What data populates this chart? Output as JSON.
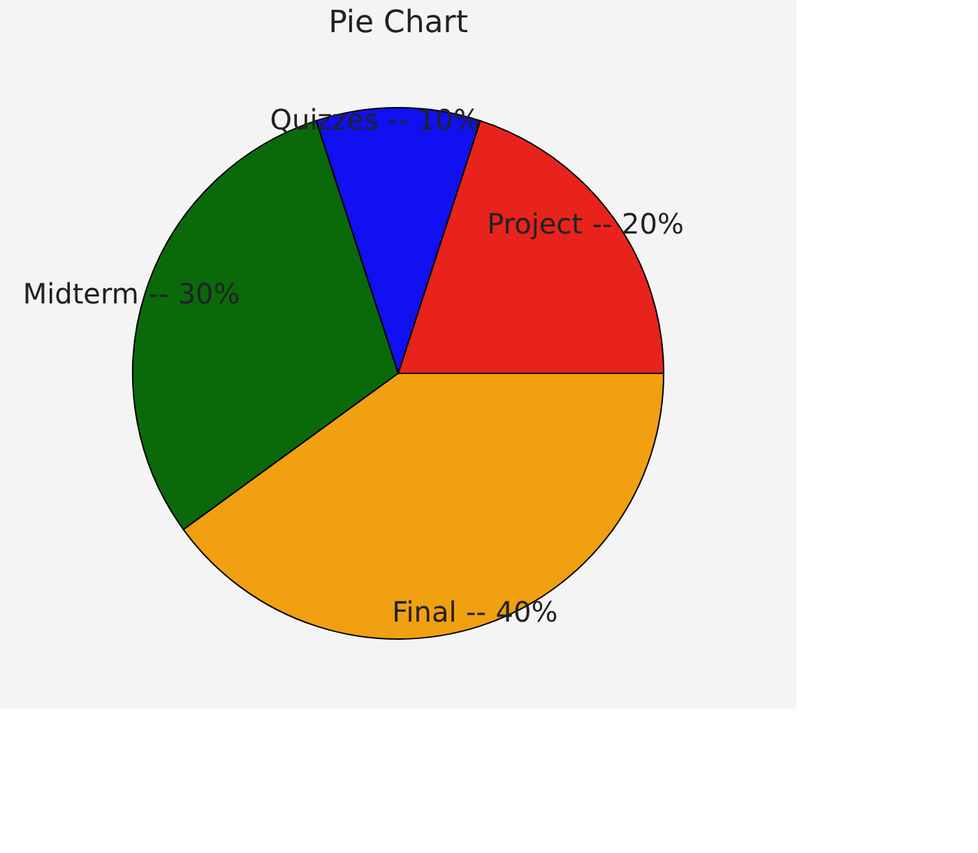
{
  "chart_data": {
    "type": "pie",
    "title": "Pie Chart",
    "categories": [
      "Project",
      "Quizzes",
      "Midterm",
      "Final"
    ],
    "values": [
      20,
      10,
      30,
      40
    ],
    "colors": [
      "#e8231b",
      "#1010f0",
      "#0a6a0a",
      "#f0a010"
    ],
    "value_labels": [
      "20%",
      "10%",
      "30%",
      "40%"
    ],
    "annotations": [
      "--",
      "--",
      "--",
      "--"
    ],
    "legend": false
  }
}
